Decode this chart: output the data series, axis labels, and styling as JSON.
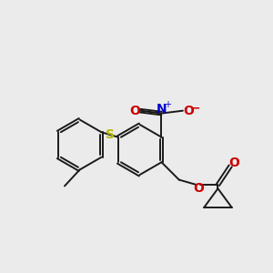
{
  "background_color": "#ebebeb",
  "bond_color": "#1a1a1a",
  "bond_width": 1.4,
  "figsize": [
    3.0,
    3.0
  ],
  "dpi": 100,
  "colors": {
    "S": "#b8b800",
    "N": "#0000cc",
    "O": "#cc0000",
    "C": "#1a1a1a"
  },
  "font_size_atom": 9,
  "font_size_charge": 7
}
